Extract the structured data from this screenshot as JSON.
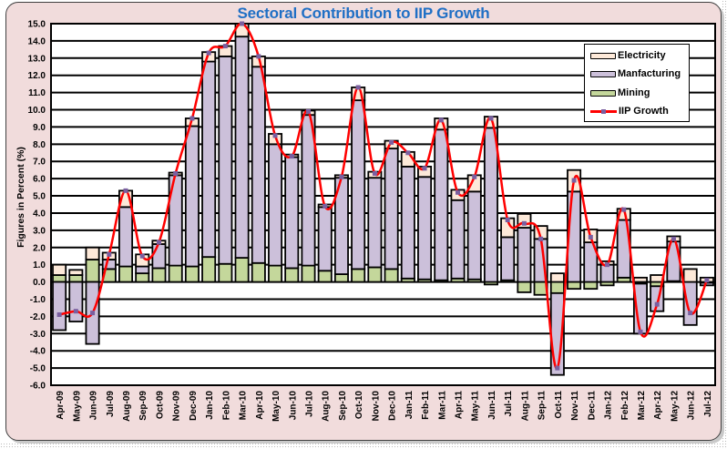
{
  "chart_data": {
    "type": "bar",
    "subtype": "stacked-bar-with-line",
    "title": "Sectoral Contribution to IIP Growth",
    "xlabel": "",
    "ylabel": "Figures in Percent (%)",
    "ylim": [
      -6.0,
      15.0
    ],
    "ytick_step": 1.0,
    "yticks": [
      "15.0",
      "14.0",
      "13.0",
      "12.0",
      "11.0",
      "10.0",
      "9.0",
      "8.0",
      "7.0",
      "6.0",
      "5.0",
      "4.0",
      "3.0",
      "2.0",
      "1.0",
      "0.0",
      "-1.0",
      "-2.0",
      "-3.0",
      "-4.0",
      "-5.0",
      "-6.0"
    ],
    "grid": true,
    "legend_position": "top-right",
    "categories": [
      "Apr-09",
      "May-09",
      "Jun-09",
      "Jul-09",
      "Aug-09",
      "Sep-09",
      "Oct-09",
      "Nov-09",
      "Dec-09",
      "Jan-10",
      "Feb-10",
      "Mar-10",
      "Apr-10",
      "May-10",
      "Jun-10",
      "Jul-10",
      "Aug-10",
      "Sep-10",
      "Oct-10",
      "Nov-10",
      "Dec-10",
      "Jan-11",
      "Feb-11",
      "Mar-11",
      "Apr-11",
      "May-11",
      "Jun-11",
      "Jul-11",
      "Aug-11",
      "Sep-11",
      "Oct-11",
      "Nov-11",
      "Dec-11",
      "Jan-12",
      "Feb-12",
      "Mar-12",
      "Apr-12",
      "May-12",
      "Jun-12",
      "Jul-12"
    ],
    "series": [
      {
        "name": "Mining",
        "kind": "bar",
        "color": "#c4d79b",
        "values": [
          0.4,
          0.4,
          1.3,
          0.75,
          0.9,
          0.5,
          0.8,
          0.95,
          0.9,
          1.45,
          1.05,
          1.4,
          1.1,
          0.95,
          0.8,
          0.95,
          0.65,
          0.45,
          0.75,
          0.85,
          0.75,
          0.2,
          0.15,
          0.1,
          0.2,
          0.15,
          -0.15,
          0.1,
          -0.6,
          -0.75,
          -0.65,
          -0.4,
          -0.4,
          -0.2,
          0.25,
          -0.1,
          -0.25,
          0.05,
          0.0,
          -0.05
        ]
      },
      {
        "name": "Manfacturing",
        "kind": "bar",
        "color": "#ccc0da",
        "values": [
          -2.8,
          -2.3,
          -3.6,
          0.55,
          3.45,
          0.4,
          1.4,
          5.25,
          8.15,
          11.35,
          12.05,
          12.85,
          11.4,
          7.05,
          6.45,
          8.75,
          3.7,
          5.6,
          9.8,
          5.2,
          7.0,
          6.5,
          5.95,
          8.75,
          4.55,
          5.1,
          8.95,
          2.5,
          3.15,
          2.5,
          -4.75,
          5.25,
          2.3,
          1.0,
          3.35,
          -2.9,
          -1.45,
          2.3,
          -2.5,
          -0.15
        ]
      },
      {
        "name": "Electricity",
        "kind": "bar",
        "color": "#fde9d9",
        "values": [
          0.6,
          0.3,
          0.7,
          0.4,
          0.95,
          0.7,
          0.2,
          0.15,
          0.45,
          0.55,
          0.6,
          0.75,
          0.6,
          0.6,
          0.15,
          0.25,
          0.15,
          0.15,
          0.75,
          0.35,
          0.45,
          0.85,
          0.6,
          0.65,
          0.6,
          0.95,
          0.65,
          1.1,
          0.8,
          0.75,
          0.5,
          1.25,
          0.75,
          0.2,
          0.65,
          0.25,
          0.4,
          0.3,
          0.75,
          0.25
        ]
      },
      {
        "name": "IIP Growth",
        "kind": "line",
        "color": "#ff0000",
        "marker_color": "#7a5fa0",
        "values": [
          -1.9,
          -1.7,
          -1.8,
          1.6,
          5.3,
          1.5,
          2.3,
          6.3,
          9.5,
          13.3,
          13.7,
          15.0,
          13.1,
          8.5,
          7.3,
          9.9,
          4.4,
          6.1,
          11.3,
          6.3,
          8.1,
          7.5,
          6.6,
          9.4,
          5.2,
          6.1,
          9.5,
          3.6,
          3.4,
          2.5,
          -5.0,
          5.9,
          2.6,
          1.0,
          4.2,
          -2.9,
          -1.3,
          2.5,
          -1.8,
          0.1
        ]
      }
    ],
    "legend": [
      {
        "label": "Electricity",
        "color": "#fde9d9"
      },
      {
        "label": "Manfacturing",
        "color": "#ccc0da"
      },
      {
        "label": "Mining",
        "color": "#c4d79b"
      },
      {
        "label": "IIP Growth",
        "color": "#ff0000"
      }
    ]
  }
}
